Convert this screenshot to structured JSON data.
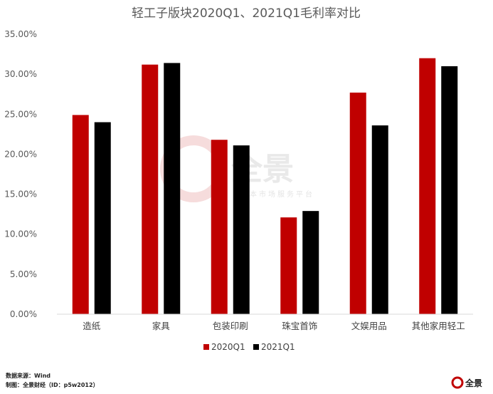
{
  "chart_data": {
    "type": "bar",
    "title": "轻工子版块2020Q1、2021Q1毛利率对比",
    "categories": [
      "造纸",
      "家具",
      "包装印刷",
      "珠宝首饰",
      "文娱用品",
      "其他家用轻工"
    ],
    "series": [
      {
        "name": "2020Q1",
        "color": "#c00000",
        "values": [
          24.9,
          31.2,
          21.8,
          12.1,
          27.7,
          32.0
        ]
      },
      {
        "name": "2021Q1",
        "color": "#000000",
        "values": [
          24.0,
          31.4,
          21.1,
          12.9,
          23.6,
          31.0
        ]
      }
    ],
    "ylim": [
      0,
      35
    ],
    "yticks": [
      "0.00%",
      "5.00%",
      "10.00%",
      "15.00%",
      "20.00%",
      "25.00%",
      "30.00%",
      "35.00%"
    ],
    "legend": "bottom",
    "grid": false
  },
  "watermark": {
    "name": "全景",
    "sub": "资本市场服务平台"
  },
  "footer": {
    "source": "数据来源：Wind",
    "maker": "制图：全景财经（ID：p5w2012）"
  },
  "logo": {
    "text": "全景",
    "icon": "p5w-logo-icon"
  }
}
